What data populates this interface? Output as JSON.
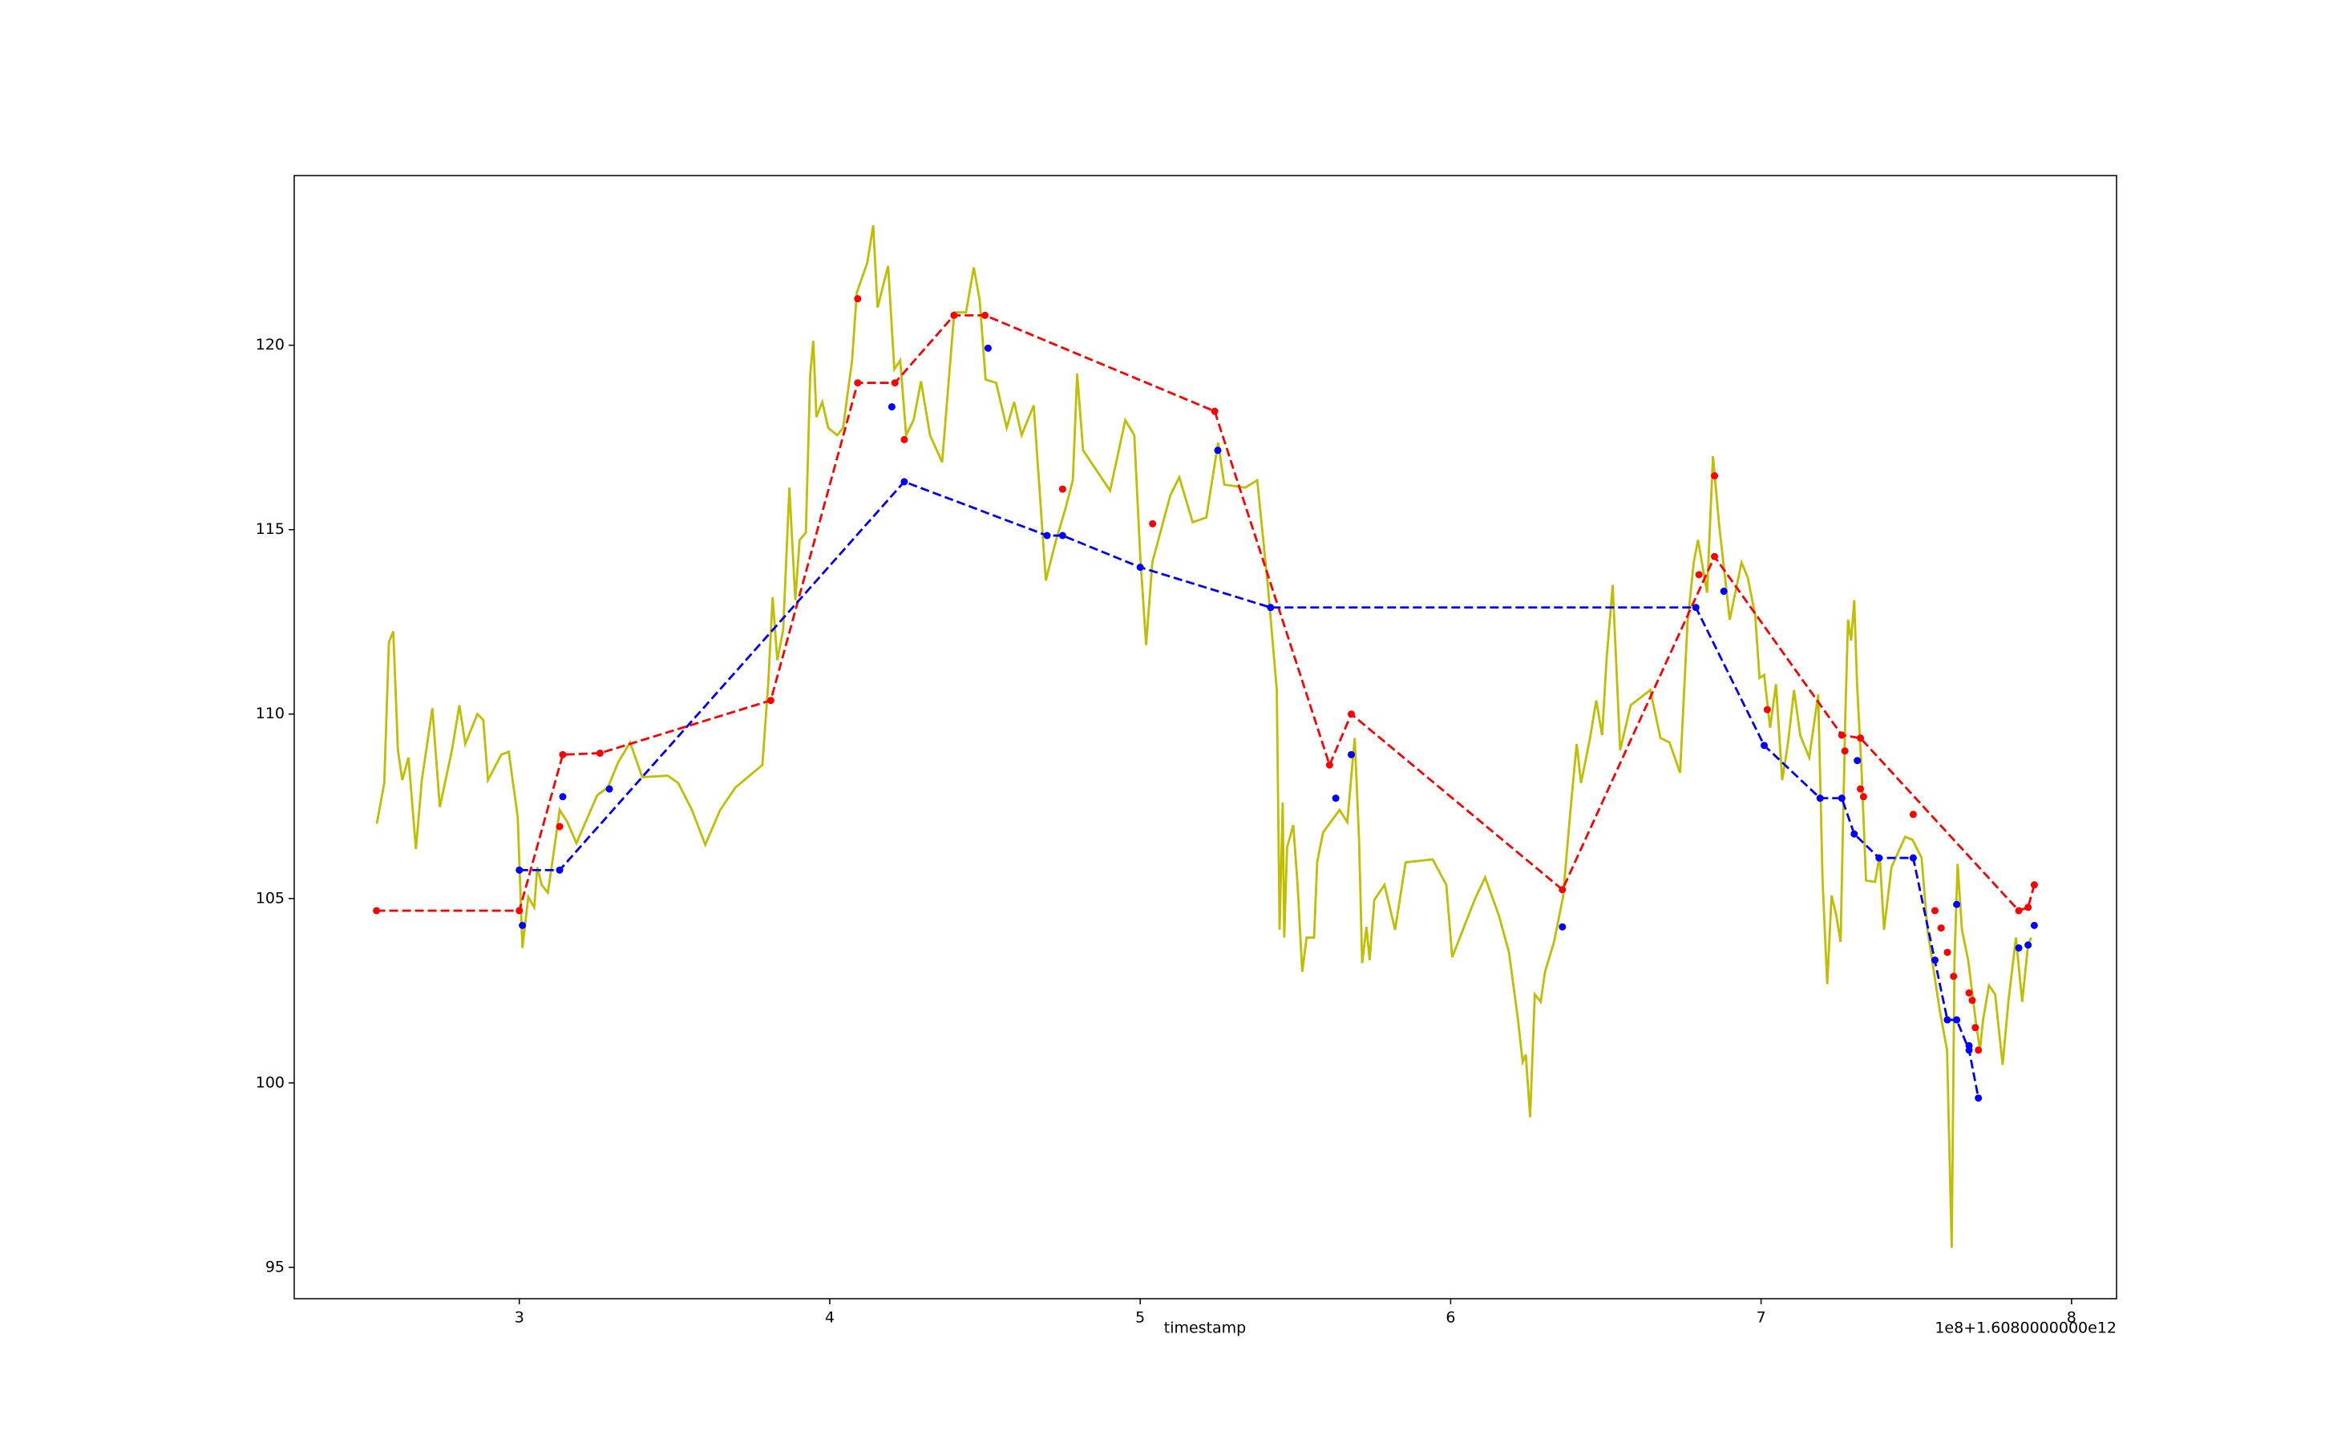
{
  "chart_data": {
    "type": "line",
    "x_label": "timestamp",
    "x_offset_label": "1e8+1.6080000000e12",
    "xlim": [
      2.275,
      8.145
    ],
    "ylim": [
      94.15,
      124.6
    ],
    "xticks": [
      3,
      4,
      5,
      6,
      7,
      8
    ],
    "yticks": [
      95,
      100,
      105,
      110,
      115,
      120
    ],
    "grid": false,
    "series": [
      {
        "color": "#bfbf00",
        "style": "solid",
        "line": true,
        "marker": false,
        "x": [
          2.541,
          2.565,
          2.58,
          2.594,
          2.609,
          2.623,
          2.643,
          2.667,
          2.686,
          2.72,
          2.744,
          2.783,
          2.807,
          2.826,
          2.865,
          2.884,
          2.899,
          2.942,
          2.966,
          2.995,
          3.01,
          3.029,
          3.048,
          3.058,
          3.072,
          3.092,
          3.111,
          3.13,
          3.155,
          3.184,
          3.251,
          3.285,
          3.319,
          3.357,
          3.396,
          3.478,
          3.512,
          3.556,
          3.599,
          3.647,
          3.696,
          3.783,
          3.802,
          3.816,
          3.831,
          3.85,
          3.87,
          3.889,
          3.903,
          3.923,
          3.937,
          3.947,
          3.957,
          3.976,
          3.995,
          4.024,
          4.043,
          4.072,
          4.087,
          4.121,
          4.14,
          4.154,
          4.188,
          4.208,
          4.227,
          4.246,
          4.27,
          4.294,
          4.323,
          4.362,
          4.401,
          4.439,
          4.464,
          4.483,
          4.502,
          4.536,
          4.57,
          4.594,
          4.618,
          4.657,
          4.696,
          4.729,
          4.758,
          4.783,
          4.797,
          4.816,
          4.903,
          4.952,
          4.981,
          5.0,
          5.019,
          5.039,
          5.097,
          5.126,
          5.169,
          5.213,
          5.251,
          5.271,
          5.338,
          5.377,
          5.411,
          5.44,
          5.449,
          5.459,
          5.464,
          5.473,
          5.493,
          5.507,
          5.522,
          5.536,
          5.56,
          5.57,
          5.589,
          5.642,
          5.667,
          5.691,
          5.705,
          5.715,
          5.729,
          5.739,
          5.754,
          5.787,
          5.821,
          5.855,
          5.942,
          5.986,
          6.005,
          6.077,
          6.111,
          6.155,
          6.188,
          6.217,
          6.232,
          6.242,
          6.256,
          6.271,
          6.29,
          6.304,
          6.333,
          6.362,
          6.386,
          6.406,
          6.42,
          6.449,
          6.469,
          6.488,
          6.502,
          6.522,
          6.546,
          6.58,
          6.643,
          6.676,
          6.705,
          6.739,
          6.763,
          6.783,
          6.797,
          6.826,
          6.845,
          6.865,
          6.899,
          6.937,
          6.957,
          6.981,
          6.995,
          7.01,
          7.029,
          7.048,
          7.068,
          7.087,
          7.106,
          7.126,
          7.155,
          7.184,
          7.198,
          7.213,
          7.227,
          7.242,
          7.256,
          7.271,
          7.28,
          7.29,
          7.3,
          7.309,
          7.324,
          7.338,
          7.367,
          7.382,
          7.396,
          7.42,
          7.464,
          7.488,
          7.517,
          7.536,
          7.556,
          7.575,
          7.599,
          7.614,
          7.623,
          7.633,
          7.647,
          7.667,
          7.691,
          7.705,
          7.715,
          7.734,
          7.754,
          7.778,
          7.797,
          7.821,
          7.841,
          7.86,
          7.87
        ],
        "values": [
          107.03,
          108.13,
          111.95,
          112.24,
          109.02,
          108.21,
          108.82,
          106.34,
          108.21,
          110.16,
          107.48,
          109.02,
          110.24,
          109.19,
          110.0,
          109.84,
          108.21,
          108.9,
          108.98,
          107.2,
          103.66,
          105.04,
          104.76,
          105.85,
          105.37,
          105.16,
          106.26,
          107.4,
          107.07,
          106.5,
          107.8,
          108.01,
          108.7,
          109.23,
          108.29,
          108.33,
          108.13,
          107.4,
          106.46,
          107.4,
          108.01,
          108.62,
          110.85,
          113.17,
          111.46,
          112.28,
          116.14,
          113.09,
          114.72,
          114.92,
          119.19,
          120.12,
          118.05,
          118.46,
          117.76,
          117.56,
          117.76,
          119.59,
          121.42,
          122.24,
          123.25,
          121.02,
          122.15,
          119.35,
          119.59,
          117.56,
          117.97,
          119.02,
          117.56,
          116.83,
          120.89,
          120.89,
          122.11,
          121.22,
          119.07,
          118.98,
          117.76,
          118.46,
          117.56,
          118.37,
          113.62,
          114.72,
          115.53,
          116.34,
          119.23,
          117.15,
          116.06,
          117.97,
          117.56,
          114.31,
          111.87,
          114.11,
          115.93,
          116.42,
          115.2,
          115.33,
          117.36,
          116.22,
          116.14,
          116.34,
          113.5,
          110.65,
          104.15,
          107.6,
          103.94,
          106.38,
          106.99,
          105.37,
          103.01,
          103.94,
          103.94,
          105.98,
          106.79,
          107.4,
          107.07,
          109.35,
          106.59,
          103.25,
          104.23,
          103.33,
          104.96,
          105.37,
          104.15,
          105.98,
          106.06,
          105.37,
          103.41,
          104.96,
          105.57,
          104.55,
          103.54,
          101.71,
          100.57,
          100.77,
          99.07,
          102.4,
          102.2,
          103.01,
          103.82,
          105.04,
          107.4,
          109.19,
          108.13,
          109.35,
          110.37,
          109.43,
          111.46,
          113.5,
          109.02,
          110.24,
          110.65,
          109.35,
          109.23,
          108.41,
          112.48,
          114.11,
          114.72,
          113.29,
          116.99,
          115.12,
          112.56,
          114.11,
          113.7,
          112.68,
          110.98,
          111.06,
          109.63,
          110.81,
          108.21,
          109.23,
          110.65,
          109.43,
          108.82,
          110.53,
          105.49,
          102.68,
          105.08,
          104.55,
          103.82,
          109.84,
          112.56,
          111.99,
          113.09,
          110.85,
          108.41,
          105.49,
          105.45,
          106.18,
          104.15,
          105.85,
          106.67,
          106.59,
          106.1,
          104.15,
          103.05,
          101.99,
          100.89,
          95.53,
          103.33,
          105.94,
          104.15,
          103.33,
          101.71,
          100.89,
          101.71,
          102.64,
          102.4,
          100.49,
          102.24,
          103.94,
          102.2,
          103.74,
          103.94
        ]
      },
      {
        "color": "#ff0000",
        "style": "dashed",
        "line": true,
        "marker": true,
        "x": [
          2.54,
          3.0,
          3.14,
          3.26,
          3.81,
          4.09,
          4.21,
          4.4,
          4.5,
          5.24,
          5.61,
          5.68,
          6.36,
          6.85,
          7.26,
          7.32,
          7.83,
          7.86,
          7.88
        ],
        "values": [
          104.67,
          104.67,
          108.9,
          108.94,
          110.37,
          118.98,
          118.98,
          120.81,
          120.81,
          118.21,
          108.62,
          110.0,
          105.24,
          114.27,
          109.43,
          109.35,
          104.67,
          104.76,
          105.37
        ]
      },
      {
        "color": "#0000ff",
        "style": "dashed",
        "line": true,
        "marker": true,
        "x": [
          3.0,
          3.13,
          4.24,
          4.7,
          4.75,
          5.0,
          5.42,
          6.79,
          7.01,
          7.19,
          7.26,
          7.3,
          7.38,
          7.49,
          7.6,
          7.63,
          7.67,
          7.7
        ],
        "values": [
          105.77,
          105.77,
          116.3,
          114.84,
          114.84,
          113.98,
          112.89,
          112.89,
          109.15,
          107.72,
          107.72,
          106.75,
          106.1,
          106.1,
          101.71,
          101.71,
          100.89,
          99.59
        ]
      },
      {
        "color": "#ff0000",
        "style": "none",
        "line": false,
        "marker": true,
        "x": [
          4.09,
          4.24,
          4.75,
          5.04,
          3.13,
          6.85,
          6.8,
          7.02,
          7.27,
          7.32,
          7.33,
          7.49,
          7.56,
          7.58,
          7.6,
          7.62,
          7.67,
          7.68,
          7.69,
          7.7
        ],
        "values": [
          121.26,
          117.44,
          116.1,
          115.16,
          106.95,
          116.46,
          113.78,
          110.12,
          109.0,
          107.97,
          107.76,
          107.28,
          104.67,
          104.2,
          103.54,
          102.89,
          102.44,
          102.24,
          101.5,
          100.89
        ]
      },
      {
        "color": "#0000ff",
        "style": "none",
        "line": false,
        "marker": true,
        "x": [
          3.01,
          3.14,
          3.29,
          4.2,
          4.51,
          5.25,
          5.63,
          5.68,
          6.36,
          6.88,
          7.31,
          7.56,
          7.63,
          7.67,
          7.83,
          7.86,
          7.88
        ],
        "values": [
          104.27,
          107.76,
          107.97,
          118.33,
          119.92,
          117.15,
          107.72,
          108.9,
          104.23,
          113.33,
          108.74,
          103.33,
          104.84,
          101.01,
          103.66,
          103.74,
          104.27
        ]
      }
    ]
  }
}
